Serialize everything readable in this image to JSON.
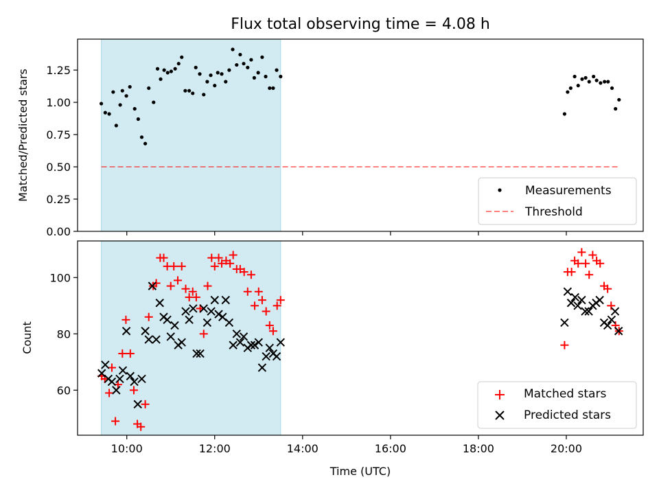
{
  "title": "Flux total observing time = 4.08 h",
  "colors": {
    "shade": "#add8e6",
    "measurements": "#000000",
    "threshold": "#ff0000",
    "matched": "#ff0000",
    "predicted": "#000000"
  },
  "chart_data": [
    {
      "type": "scatter",
      "panel": "top",
      "title": "Flux total observing time = 4.08 h",
      "xlabel": "",
      "ylabel": "Matched/Predicted stars",
      "xlim": [
        8.88,
        21.75
      ],
      "ylim": [
        0.0,
        1.49
      ],
      "yticks": [
        0.0,
        0.25,
        0.5,
        0.75,
        1.0,
        1.25
      ],
      "ytick_labels": [
        "0.00",
        "0.25",
        "0.50",
        "0.75",
        "1.00",
        "1.25"
      ],
      "shaded_x_range": [
        9.42,
        13.5
      ],
      "legend_placement": "lower right",
      "series": [
        {
          "name": "Measurements",
          "kind": "scatter",
          "marker": "dot",
          "points": [
            [
              9.42,
              0.99
            ],
            [
              9.51,
              0.92
            ],
            [
              9.6,
              0.91
            ],
            [
              9.69,
              1.08
            ],
            [
              9.76,
              0.82
            ],
            [
              9.85,
              0.98
            ],
            [
              9.9,
              1.09
            ],
            [
              9.99,
              1.05
            ],
            [
              10.07,
              1.12
            ],
            [
              10.18,
              0.95
            ],
            [
              10.26,
              0.87
            ],
            [
              10.34,
              0.73
            ],
            [
              10.42,
              0.68
            ],
            [
              10.5,
              1.11
            ],
            [
              10.61,
              1.0
            ],
            [
              10.7,
              1.26
            ],
            [
              10.77,
              1.18
            ],
            [
              10.85,
              1.25
            ],
            [
              10.93,
              1.23
            ],
            [
              11.01,
              1.24
            ],
            [
              11.1,
              1.26
            ],
            [
              11.18,
              1.3
            ],
            [
              11.25,
              1.35
            ],
            [
              11.33,
              1.09
            ],
            [
              11.42,
              1.09
            ],
            [
              11.5,
              1.07
            ],
            [
              11.57,
              1.27
            ],
            [
              11.66,
              1.22
            ],
            [
              11.75,
              1.06
            ],
            [
              11.83,
              1.16
            ],
            [
              11.91,
              1.21
            ],
            [
              12.0,
              1.13
            ],
            [
              12.07,
              1.23
            ],
            [
              12.16,
              1.22
            ],
            [
              12.25,
              1.16
            ],
            [
              12.33,
              1.25
            ],
            [
              12.41,
              1.41
            ],
            [
              12.5,
              1.29
            ],
            [
              12.58,
              1.37
            ],
            [
              12.66,
              1.3
            ],
            [
              12.75,
              1.27
            ],
            [
              12.83,
              1.33
            ],
            [
              12.9,
              1.19
            ],
            [
              12.99,
              1.23
            ],
            [
              13.08,
              1.35
            ],
            [
              13.16,
              1.2
            ],
            [
              13.25,
              1.11
            ],
            [
              13.33,
              1.11
            ],
            [
              13.41,
              1.25
            ],
            [
              13.5,
              1.2
            ],
            [
              19.96,
              0.91
            ],
            [
              20.03,
              1.08
            ],
            [
              20.1,
              1.11
            ],
            [
              20.19,
              1.2
            ],
            [
              20.27,
              1.13
            ],
            [
              20.36,
              1.18
            ],
            [
              20.44,
              1.19
            ],
            [
              20.52,
              1.16
            ],
            [
              20.62,
              1.2
            ],
            [
              20.69,
              1.17
            ],
            [
              20.78,
              1.15
            ],
            [
              20.87,
              1.16
            ],
            [
              20.95,
              1.16
            ],
            [
              21.04,
              1.11
            ],
            [
              21.12,
              0.95
            ],
            [
              21.2,
              1.02
            ]
          ]
        },
        {
          "name": "Threshold",
          "kind": "line",
          "dashed": true,
          "points": [
            [
              9.42,
              0.5
            ],
            [
              21.2,
              0.5
            ]
          ]
        }
      ]
    },
    {
      "type": "scatter",
      "panel": "bottom",
      "xlabel": "Time (UTC)",
      "ylabel": "Count",
      "xlim": [
        8.88,
        21.75
      ],
      "ylim": [
        44,
        113
      ],
      "xticks": [
        10,
        12,
        14,
        16,
        18,
        20
      ],
      "xtick_labels": [
        "10:00",
        "12:00",
        "14:00",
        "16:00",
        "18:00",
        "20:00"
      ],
      "yticks": [
        60,
        80,
        100
      ],
      "ytick_labels": [
        "60",
        "80",
        "100"
      ],
      "shaded_x_range": [
        9.42,
        13.5
      ],
      "legend_placement": "lower right",
      "series": [
        {
          "name": "Matched stars",
          "marker": "plus",
          "points": [
            [
              9.43,
              65
            ],
            [
              9.5,
              64
            ],
            [
              9.6,
              59
            ],
            [
              9.66,
              68
            ],
            [
              9.74,
              49
            ],
            [
              9.8,
              62
            ],
            [
              9.9,
              73
            ],
            [
              9.98,
              85
            ],
            [
              10.08,
              73
            ],
            [
              10.16,
              60
            ],
            [
              10.24,
              48
            ],
            [
              10.32,
              47
            ],
            [
              10.42,
              55
            ],
            [
              10.5,
              86
            ],
            [
              10.6,
              97
            ],
            [
              10.67,
              98
            ],
            [
              10.76,
              107
            ],
            [
              10.84,
              107
            ],
            [
              10.92,
              104
            ],
            [
              11.0,
              97
            ],
            [
              11.07,
              104
            ],
            [
              11.16,
              99
            ],
            [
              11.25,
              104
            ],
            [
              11.34,
              96
            ],
            [
              11.42,
              93
            ],
            [
              11.5,
              95
            ],
            [
              11.58,
              93
            ],
            [
              11.67,
              89
            ],
            [
              11.75,
              80
            ],
            [
              11.84,
              97
            ],
            [
              11.93,
              107
            ],
            [
              12.0,
              104
            ],
            [
              12.09,
              107
            ],
            [
              12.16,
              105
            ],
            [
              12.26,
              106
            ],
            [
              12.35,
              105
            ],
            [
              12.42,
              108
            ],
            [
              12.5,
              103
            ],
            [
              12.58,
              103
            ],
            [
              12.67,
              102
            ],
            [
              12.75,
              95
            ],
            [
              12.83,
              101
            ],
            [
              12.91,
              90
            ],
            [
              13.0,
              95
            ],
            [
              13.08,
              92
            ],
            [
              13.17,
              88
            ],
            [
              13.25,
              83
            ],
            [
              13.33,
              81
            ],
            [
              13.42,
              90
            ],
            [
              13.5,
              92
            ],
            [
              19.96,
              76
            ],
            [
              20.03,
              102
            ],
            [
              20.12,
              102
            ],
            [
              20.19,
              106
            ],
            [
              20.27,
              105
            ],
            [
              20.35,
              109
            ],
            [
              20.44,
              105
            ],
            [
              20.52,
              101
            ],
            [
              20.6,
              108
            ],
            [
              20.69,
              106
            ],
            [
              20.77,
              105
            ],
            [
              20.86,
              97
            ],
            [
              20.94,
              96
            ],
            [
              21.02,
              90
            ],
            [
              21.12,
              83
            ],
            [
              21.2,
              81
            ]
          ]
        },
        {
          "name": "Predicted stars",
          "marker": "x",
          "points": [
            [
              9.43,
              66
            ],
            [
              9.51,
              69
            ],
            [
              9.58,
              64
            ],
            [
              9.66,
              63
            ],
            [
              9.76,
              60
            ],
            [
              9.84,
              64
            ],
            [
              9.91,
              67
            ],
            [
              9.99,
              81
            ],
            [
              10.08,
              65
            ],
            [
              10.17,
              63
            ],
            [
              10.25,
              55
            ],
            [
              10.34,
              64
            ],
            [
              10.42,
              81
            ],
            [
              10.5,
              78
            ],
            [
              10.58,
              97
            ],
            [
              10.67,
              78
            ],
            [
              10.75,
              91
            ],
            [
              10.84,
              86
            ],
            [
              10.92,
              85
            ],
            [
              11.0,
              79
            ],
            [
              11.09,
              83
            ],
            [
              11.17,
              76
            ],
            [
              11.25,
              77
            ],
            [
              11.34,
              88
            ],
            [
              11.42,
              85
            ],
            [
              11.51,
              89
            ],
            [
              11.59,
              73
            ],
            [
              11.67,
              73
            ],
            [
              11.75,
              89
            ],
            [
              11.83,
              84
            ],
            [
              11.92,
              88
            ],
            [
              12.0,
              92
            ],
            [
              12.09,
              87
            ],
            [
              12.18,
              86
            ],
            [
              12.25,
              92
            ],
            [
              12.33,
              84
            ],
            [
              12.42,
              76
            ],
            [
              12.5,
              80
            ],
            [
              12.58,
              77
            ],
            [
              12.66,
              79
            ],
            [
              12.75,
              75
            ],
            [
              12.83,
              76
            ],
            [
              12.91,
              76
            ],
            [
              13.0,
              77
            ],
            [
              13.08,
              68
            ],
            [
              13.17,
              72
            ],
            [
              13.25,
              75
            ],
            [
              13.33,
              73
            ],
            [
              13.41,
              72
            ],
            [
              13.5,
              77
            ],
            [
              19.96,
              84
            ],
            [
              20.03,
              95
            ],
            [
              20.11,
              91
            ],
            [
              20.2,
              93
            ],
            [
              20.26,
              90
            ],
            [
              20.35,
              92
            ],
            [
              20.43,
              88
            ],
            [
              20.51,
              88
            ],
            [
              20.6,
              90
            ],
            [
              20.68,
              91
            ],
            [
              20.76,
              92
            ],
            [
              20.86,
              84
            ],
            [
              20.94,
              83
            ],
            [
              21.03,
              85
            ],
            [
              21.11,
              88
            ],
            [
              21.19,
              81
            ]
          ]
        }
      ]
    }
  ]
}
